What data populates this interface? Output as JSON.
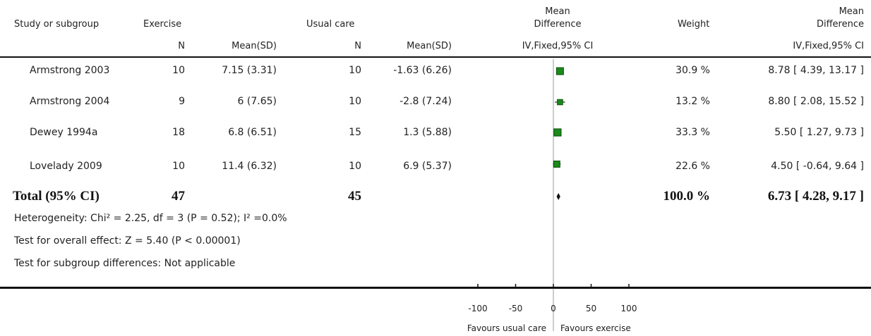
{
  "headers": {
    "study": "Study or subgroup",
    "exercise": "Exercise",
    "usual_care": "Usual care",
    "md_line1": "Mean",
    "md_line2": "Difference",
    "weight": "Weight",
    "md2_line1": "Mean",
    "md2_line2": "Difference",
    "n1": "N",
    "mean_sd1": "Mean(SD)",
    "n2": "N",
    "mean_sd2": "Mean(SD)",
    "method_plot": "IV,Fixed,95% CI",
    "method_col": "IV,Fixed,95% CI"
  },
  "studies": [
    {
      "name": "Armstrong 2003",
      "n1": "10",
      "msd1": "7.15 (3.31)",
      "n2": "10",
      "msd2": "-1.63 (6.26)",
      "weight": "30.9 %",
      "ci_text": "8.78 [ 4.39, 13.17 ]"
    },
    {
      "name": "Armstrong 2004",
      "n1": "9",
      "msd1": "6 (7.65)",
      "n2": "10",
      "msd2": "-2.8 (7.24)",
      "weight": "13.2 %",
      "ci_text": "8.80 [ 2.08, 15.52 ]"
    },
    {
      "name": "Dewey 1994a",
      "n1": "18",
      "msd1": "6.8 (6.51)",
      "n2": "15",
      "msd2": "1.3 (5.88)",
      "weight": "33.3 %",
      "ci_text": "5.50 [ 1.27, 9.73 ]"
    },
    {
      "name": "Lovelady 2009",
      "n1": "10",
      "msd1": "11.4 (6.32)",
      "n2": "10",
      "msd2": "6.9 (5.37)",
      "weight": "22.6 %",
      "ci_text": "4.50 [ -0.64, 9.64 ]"
    }
  ],
  "total": {
    "label": "Total (95% CI)",
    "n1": "47",
    "n2": "45",
    "weight": "100.0 %",
    "ci_text": "6.73 [ 4.28, 9.17 ]"
  },
  "notes": {
    "heterogeneity": "Heterogeneity: Chi² = 2.25, df = 3 (P = 0.52); I² =0.0%",
    "overall": "Test for overall effect: Z = 5.40 (P < 0.00001)",
    "subgroup": "Test for subgroup differences: Not applicable"
  },
  "axis": {
    "ticks": [
      "-100",
      "-50",
      "0",
      "50",
      "100"
    ],
    "favours_left": "Favours usual care",
    "favours_right": "Favours exercise"
  },
  "colors": {
    "marker": "#1a8a1a",
    "marker_edge": "#0b4d0b",
    "line": "#222222",
    "zero_line": "#999999"
  },
  "chart_data": {
    "type": "forest",
    "xlim": [
      -100,
      100
    ],
    "xticks": [
      -100,
      -50,
      0,
      50,
      100
    ],
    "studies": [
      {
        "name": "Armstrong 2003",
        "md": 8.78,
        "lo": 4.39,
        "hi": 13.17,
        "weight": 30.9
      },
      {
        "name": "Armstrong 2004",
        "md": 8.8,
        "lo": 2.08,
        "hi": 15.52,
        "weight": 13.2
      },
      {
        "name": "Dewey 1994a",
        "md": 5.5,
        "lo": 1.27,
        "hi": 9.73,
        "weight": 33.3
      },
      {
        "name": "Lovelady 2009",
        "md": 4.5,
        "lo": -0.64,
        "hi": 9.64,
        "weight": 22.6
      }
    ],
    "total": {
      "md": 6.73,
      "lo": 4.28,
      "hi": 9.17
    }
  }
}
